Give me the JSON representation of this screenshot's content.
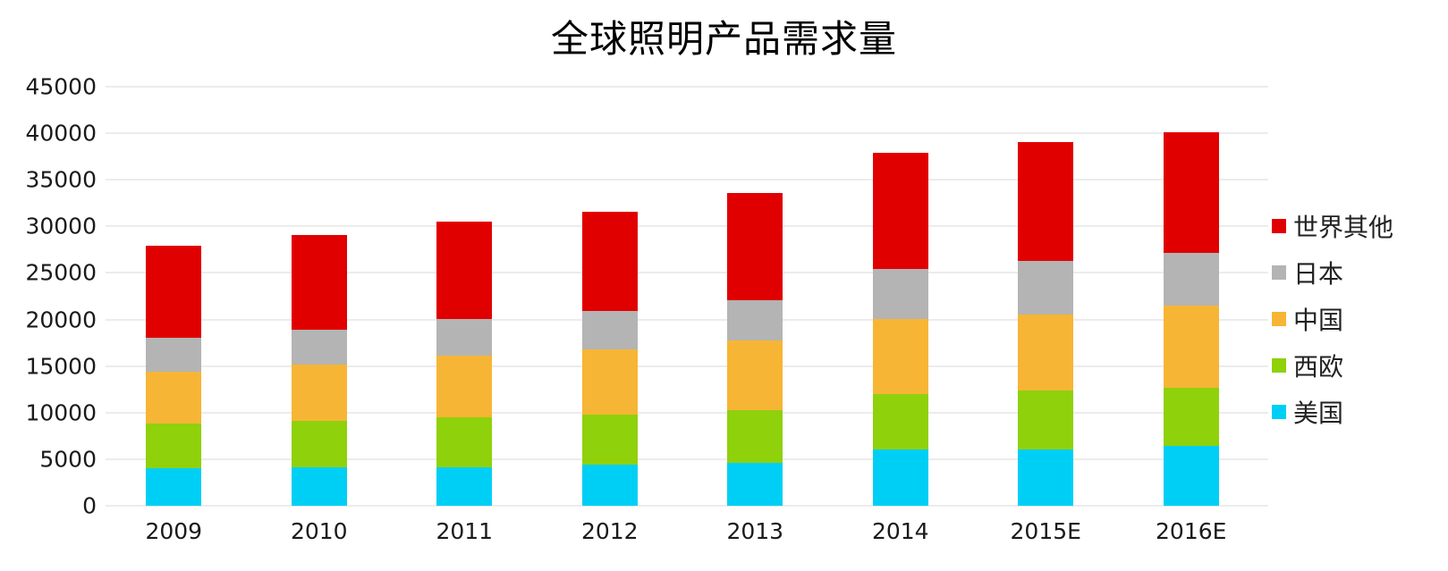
{
  "chart_data": {
    "type": "bar",
    "stacked": true,
    "title": "全球照明产品需求量",
    "xlabel": "",
    "ylabel": "",
    "ylim": [
      0,
      45000
    ],
    "yticks": [
      0,
      5000,
      10000,
      15000,
      20000,
      25000,
      30000,
      35000,
      40000,
      45000
    ],
    "grid": true,
    "legend_position": "right",
    "categories": [
      "2009",
      "2010",
      "2011",
      "2012",
      "2013",
      "2014",
      "2015E",
      "2016E"
    ],
    "series": [
      {
        "name": "美国",
        "color": "#00cff5",
        "values": [
          4000,
          4100,
          4100,
          4400,
          4600,
          6000,
          6000,
          6400
        ]
      },
      {
        "name": "西欧",
        "color": "#8fd10b",
        "values": [
          4800,
          5000,
          5400,
          5400,
          5700,
          6000,
          6400,
          6300
        ]
      },
      {
        "name": "中国",
        "color": "#f7b535",
        "values": [
          5600,
          6100,
          6600,
          7000,
          7500,
          8100,
          8100,
          8800
        ]
      },
      {
        "name": "日本",
        "color": "#b4b4b4",
        "values": [
          3600,
          3700,
          4000,
          4100,
          4300,
          5300,
          5800,
          5700
        ]
      },
      {
        "name": "世界其他",
        "color": "#e00000",
        "values": [
          9900,
          10200,
          10400,
          10700,
          11500,
          12500,
          12800,
          12900
        ]
      }
    ],
    "totals": [
      27900,
      29100,
      30500,
      31600,
      33600,
      37900,
      39100,
      40100
    ]
  },
  "legend": [
    {
      "label": "世界其他",
      "color": "#e00000"
    },
    {
      "label": "日本",
      "color": "#b4b4b4"
    },
    {
      "label": "中国",
      "color": "#f7b535"
    },
    {
      "label": "西欧",
      "color": "#8fd10b"
    },
    {
      "label": "美国",
      "color": "#00cff5"
    }
  ]
}
